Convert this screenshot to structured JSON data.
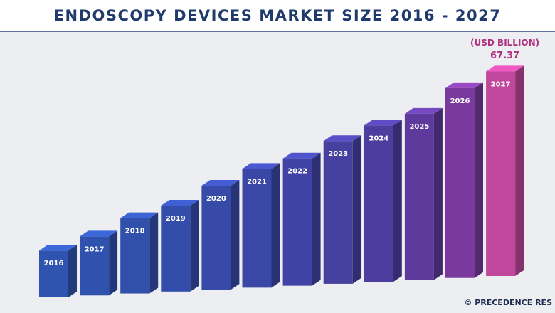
{
  "chart_data": {
    "type": "bar3d",
    "title": "ENDOSCOPY DEVICES MARKET SIZE 2016 - 2027",
    "unit_label": "(USD BILLION)",
    "credit": "© PRECEDENCE RES",
    "categories": [
      "2016",
      "2017",
      "2018",
      "2019",
      "2020",
      "2021",
      "2022",
      "2023",
      "2024",
      "2025",
      "2026",
      "2027"
    ],
    "values": [
      15.4,
      19.4,
      24.8,
      28.3,
      34.2,
      39.1,
      41.9,
      47.0,
      51.5,
      54.7,
      62.5,
      67.37
    ],
    "value_labels": [
      null,
      null,
      null,
      null,
      null,
      null,
      null,
      null,
      null,
      null,
      null,
      "67.37"
    ],
    "colors": [
      "#2f54b0",
      "#2f52ae",
      "#3150ac",
      "#334dab",
      "#374aa8",
      "#3b47a6",
      "#4043a3",
      "#46409f",
      "#4d3d9e",
      "#5e3a9c",
      "#7a3a9d",
      "#c0479b"
    ]
  }
}
